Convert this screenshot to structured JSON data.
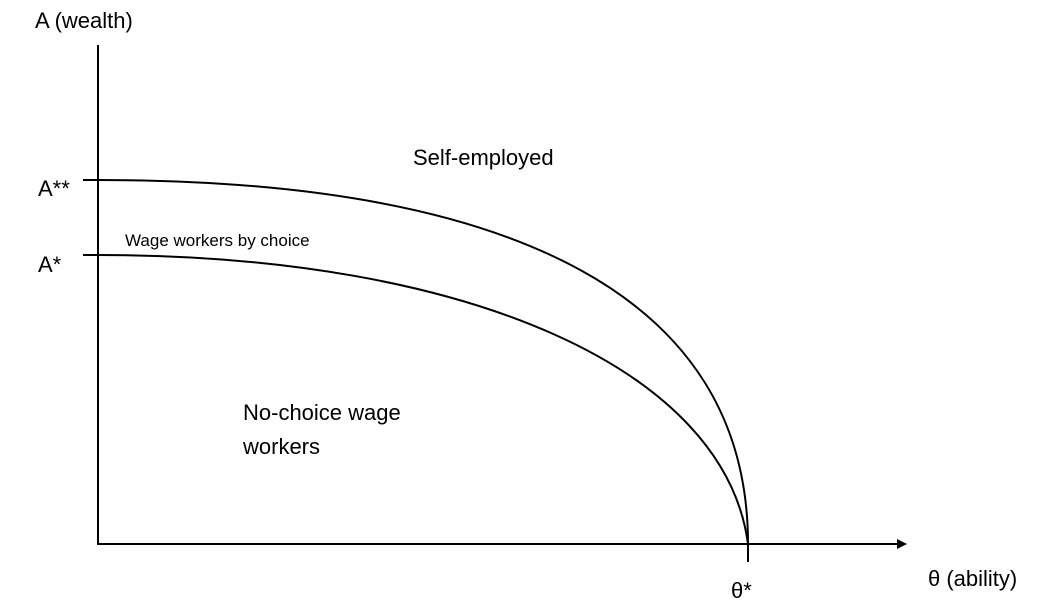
{
  "axes": {
    "y_label": "A (wealth)",
    "x_label": "θ (ability)"
  },
  "ticks": {
    "a_high": "A**",
    "a_low": "A*",
    "theta": "θ*"
  },
  "regions": {
    "self_employed": "Self-employed",
    "by_choice": "Wage workers by choice",
    "no_choice": [
      "No-choice wage",
      "workers"
    ]
  }
}
